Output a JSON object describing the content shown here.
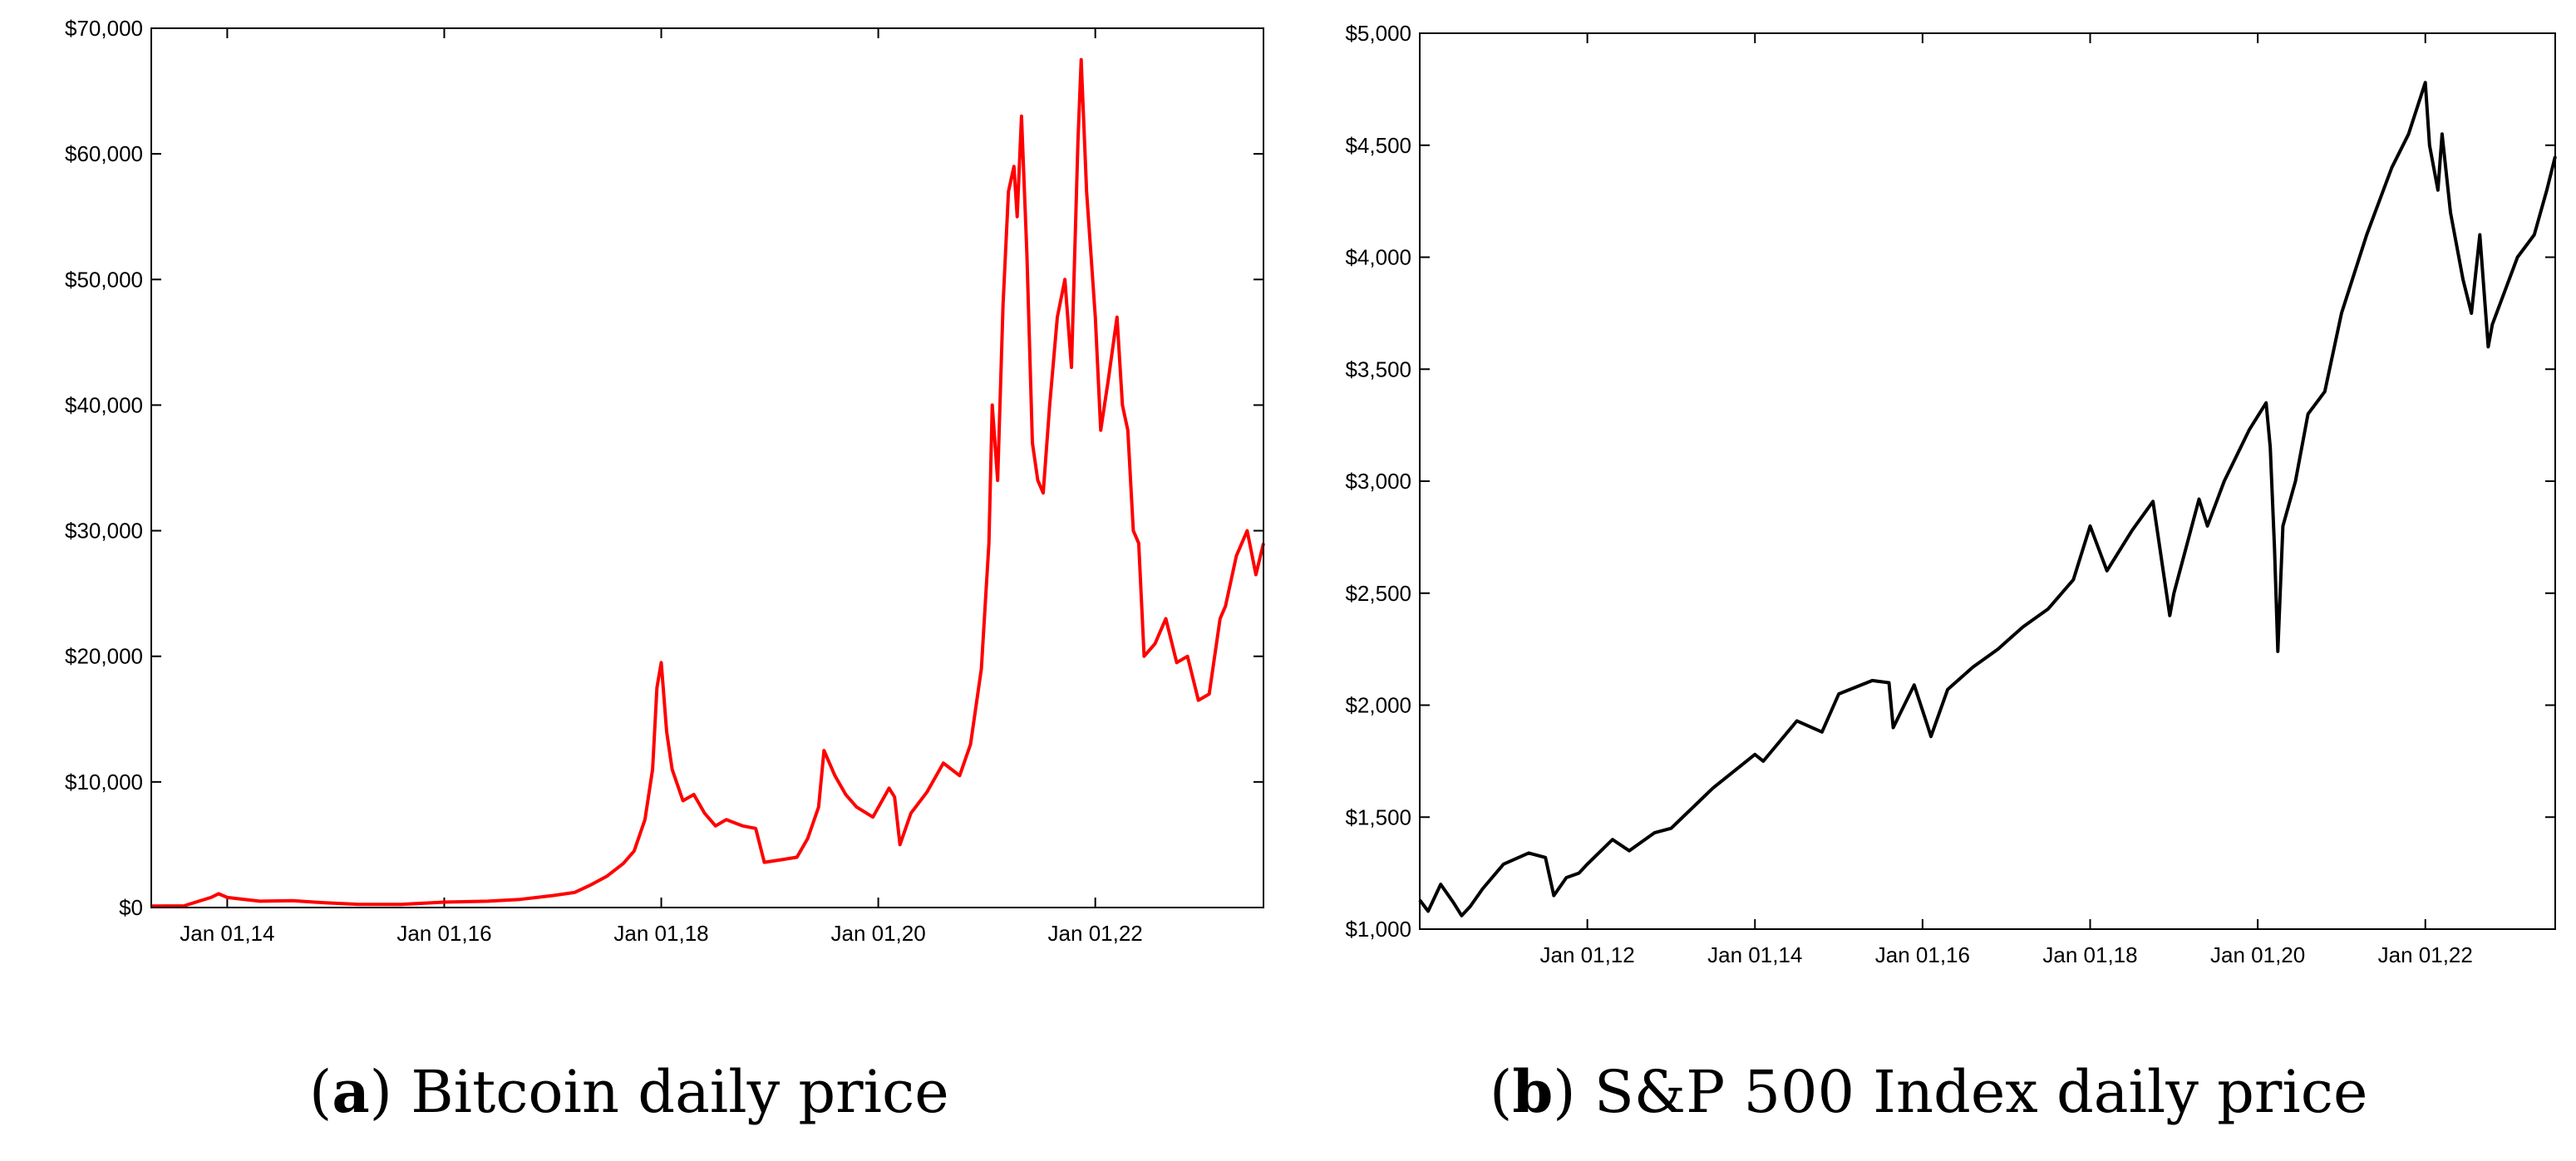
{
  "chart_data": [
    {
      "type": "line",
      "title": "Bitcoin daily price",
      "panel_letter": "a",
      "caption": "Bitcoin daily price",
      "color": "#ff0000",
      "xlim": [
        2013.3,
        2023.55
      ],
      "ylim": [
        0,
        70000
      ],
      "yticks": [
        0,
        10000,
        20000,
        30000,
        40000,
        50000,
        60000,
        70000
      ],
      "ytick_labels": [
        "$0",
        "$10,000",
        "$20,000",
        "$30,000",
        "$40,000",
        "$50,000",
        "$60,000",
        "$70,000"
      ],
      "xticks": [
        2014,
        2016,
        2018,
        2020,
        2022
      ],
      "xtick_labels": [
        "Jan 01,14",
        "Jan 01,16",
        "Jan 01,18",
        "Jan 01,20",
        "Jan 01,22"
      ],
      "series": [
        {
          "name": "Bitcoin",
          "x": [
            2013.3,
            2013.6,
            2013.85,
            2013.92,
            2014.0,
            2014.1,
            2014.3,
            2014.6,
            2014.9,
            2015.2,
            2015.6,
            2016.0,
            2016.4,
            2016.7,
            2017.0,
            2017.2,
            2017.35,
            2017.5,
            2017.65,
            2017.75,
            2017.85,
            2017.92,
            2017.96,
            2018.0,
            2018.05,
            2018.1,
            2018.2,
            2018.3,
            2018.4,
            2018.5,
            2018.6,
            2018.75,
            2018.87,
            2018.95,
            2019.1,
            2019.25,
            2019.35,
            2019.45,
            2019.5,
            2019.6,
            2019.7,
            2019.8,
            2019.95,
            2020.1,
            2020.15,
            2020.2,
            2020.3,
            2020.45,
            2020.6,
            2020.75,
            2020.85,
            2020.95,
            2021.02,
            2021.05,
            2021.1,
            2021.15,
            2021.2,
            2021.25,
            2021.28,
            2021.32,
            2021.37,
            2021.42,
            2021.47,
            2021.52,
            2021.58,
            2021.65,
            2021.72,
            2021.78,
            2021.84,
            2021.87,
            2021.92,
            2022.0,
            2022.05,
            2022.12,
            2022.2,
            2022.25,
            2022.3,
            2022.35,
            2022.4,
            2022.45,
            2022.55,
            2022.65,
            2022.75,
            2022.85,
            2022.95,
            2023.05,
            2023.15,
            2023.2,
            2023.3,
            2023.4,
            2023.48,
            2023.55
          ],
          "values": [
            120,
            130,
            800,
            1100,
            800,
            700,
            500,
            550,
            380,
            260,
            250,
            430,
            500,
            650,
            950,
            1200,
            1800,
            2500,
            3500,
            4500,
            7000,
            11000,
            17500,
            19500,
            14000,
            11000,
            8500,
            9000,
            7500,
            6500,
            7000,
            6500,
            6300,
            3600,
            3800,
            4000,
            5500,
            8000,
            12500,
            10500,
            9000,
            8000,
            7200,
            9500,
            8800,
            5000,
            7500,
            9200,
            11500,
            10500,
            13000,
            19000,
            29000,
            40000,
            34000,
            48000,
            57000,
            59000,
            55000,
            63000,
            52000,
            37000,
            34000,
            33000,
            40000,
            47000,
            50000,
            43000,
            61000,
            67500,
            57000,
            47000,
            38000,
            42000,
            47000,
            40000,
            38000,
            30000,
            29000,
            20000,
            21000,
            23000,
            19500,
            20000,
            16500,
            17000,
            23000,
            24000,
            28000,
            30000,
            26500,
            29000
          ]
        }
      ]
    },
    {
      "type": "line",
      "title": "S&P 500 Index daily price",
      "panel_letter": "b",
      "caption": "S&P 500 Index daily price",
      "color": "#000000",
      "xlim": [
        2010.0,
        2023.55
      ],
      "ylim": [
        1000,
        5000
      ],
      "yticks": [
        1000,
        1500,
        2000,
        2500,
        3000,
        3500,
        4000,
        4500,
        5000
      ],
      "ytick_labels": [
        "$1,000",
        "$1,500",
        "$2,000",
        "$2,500",
        "$3,000",
        "$3,500",
        "$4,000",
        "$4,500",
        "$5,000"
      ],
      "xticks": [
        2012,
        2014,
        2016,
        2018,
        2020,
        2022
      ],
      "xtick_labels": [
        "Jan 01,12",
        "Jan 01,14",
        "Jan 01,16",
        "Jan 01,18",
        "Jan 01,20",
        "Jan 01,22"
      ],
      "series": [
        {
          "name": "S&P 500",
          "x": [
            2010.0,
            2010.1,
            2010.25,
            2010.4,
            2010.5,
            2010.6,
            2010.75,
            2011.0,
            2011.3,
            2011.5,
            2011.6,
            2011.75,
            2011.9,
            2012.0,
            2012.3,
            2012.5,
            2012.8,
            2013.0,
            2013.5,
            2014.0,
            2014.1,
            2014.5,
            2014.8,
            2015.0,
            2015.4,
            2015.6,
            2015.65,
            2015.9,
            2016.05,
            2016.1,
            2016.3,
            2016.6,
            2016.9,
            2017.2,
            2017.5,
            2017.8,
            2018.0,
            2018.1,
            2018.2,
            2018.5,
            2018.75,
            2018.95,
            2019.0,
            2019.3,
            2019.4,
            2019.6,
            2019.9,
            2020.1,
            2020.15,
            2020.2,
            2020.24,
            2020.3,
            2020.45,
            2020.6,
            2020.8,
            2021.0,
            2021.3,
            2021.6,
            2021.8,
            2022.0,
            2022.05,
            2022.15,
            2022.2,
            2022.3,
            2022.45,
            2022.55,
            2022.65,
            2022.75,
            2022.8,
            2022.95,
            2023.1,
            2023.3,
            2023.45,
            2023.55
          ],
          "values": [
            1130,
            1080,
            1200,
            1120,
            1060,
            1100,
            1180,
            1290,
            1340,
            1320,
            1150,
            1230,
            1250,
            1290,
            1400,
            1350,
            1430,
            1450,
            1630,
            1780,
            1750,
            1930,
            1880,
            2050,
            2110,
            2100,
            1900,
            2090,
            1920,
            1860,
            2070,
            2170,
            2250,
            2350,
            2430,
            2560,
            2800,
            2700,
            2600,
            2780,
            2910,
            2400,
            2500,
            2920,
            2800,
            3000,
            3230,
            3350,
            3150,
            2700,
            2240,
            2800,
            3000,
            3300,
            3400,
            3750,
            4100,
            4400,
            4550,
            4780,
            4500,
            4300,
            4550,
            4200,
            3900,
            3750,
            4100,
            3600,
            3700,
            3850,
            4000,
            4100,
            4300,
            4450
          ]
        }
      ]
    }
  ]
}
